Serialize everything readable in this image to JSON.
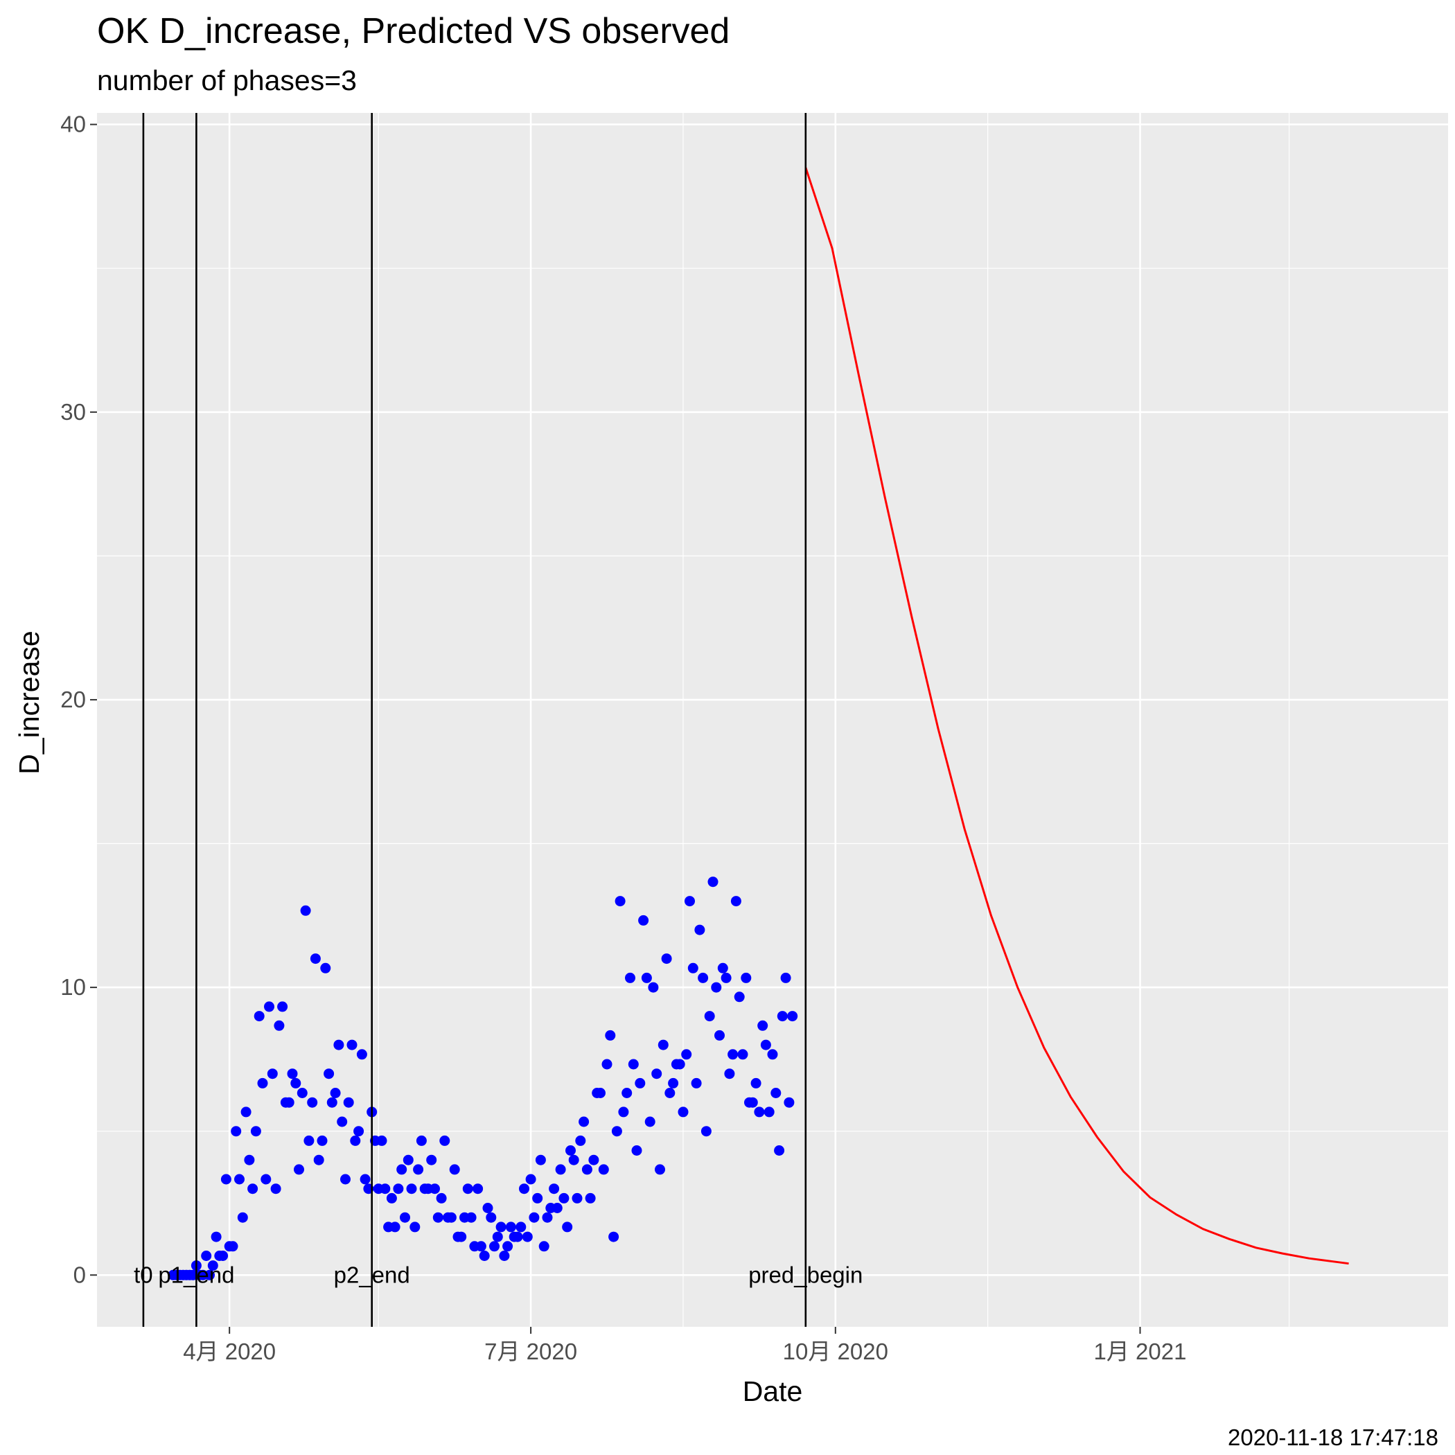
{
  "chart_data": {
    "type": "scatter",
    "title": "OK D_increase, Predicted VS observed",
    "subtitle": "number of phases=3",
    "xlabel": "Date",
    "ylabel": "D_increase",
    "caption": "2020-11-18 17:47:18",
    "x_range": [
      "2020-02-21",
      "2021-04-04"
    ],
    "ylim": [
      -1.8,
      40.4
    ],
    "y_ticks": [
      0,
      10,
      20,
      30,
      40
    ],
    "x_ticks": [
      {
        "date": "2020-04-01",
        "label": "4月 2020"
      },
      {
        "date": "2020-07-01",
        "label": "7月 2020"
      },
      {
        "date": "2020-10-01",
        "label": "10月 2020"
      },
      {
        "date": "2021-01-01",
        "label": "1月 2021"
      }
    ],
    "x_minor_ticks": [
      "2020-02-15",
      "2020-05-16",
      "2020-08-16",
      "2020-11-16",
      "2021-02-15"
    ],
    "grid": true,
    "background": "#EBEBEB",
    "vlines": [
      {
        "date": "2020-03-06",
        "label": "t0"
      },
      {
        "date": "2020-03-22",
        "label": "p1_end"
      },
      {
        "date": "2020-05-14",
        "label": "p2_end"
      },
      {
        "date": "2020-09-22",
        "label": "pred_begin"
      }
    ],
    "series": [
      {
        "color": "#0000FF",
        "kind": "points",
        "points": [
          [
            "2020-03-15",
            0
          ],
          [
            "2020-03-16",
            0
          ],
          [
            "2020-03-17",
            0
          ],
          [
            "2020-03-18",
            0
          ],
          [
            "2020-03-19",
            0
          ],
          [
            "2020-03-20",
            0
          ],
          [
            "2020-03-21",
            0
          ],
          [
            "2020-03-22",
            0.33
          ],
          [
            "2020-03-23",
            0
          ],
          [
            "2020-03-24",
            0
          ],
          [
            "2020-03-25",
            0.67
          ],
          [
            "2020-03-26",
            0
          ],
          [
            "2020-03-27",
            0.33
          ],
          [
            "2020-03-28",
            1.33
          ],
          [
            "2020-03-29",
            0.67
          ],
          [
            "2020-03-30",
            0.67
          ],
          [
            "2020-03-31",
            3.33
          ],
          [
            "2020-04-01",
            1.0
          ],
          [
            "2020-04-02",
            1.0
          ],
          [
            "2020-04-03",
            5.0
          ],
          [
            "2020-04-04",
            3.33
          ],
          [
            "2020-04-05",
            2.0
          ],
          [
            "2020-04-06",
            5.67
          ],
          [
            "2020-04-07",
            4.0
          ],
          [
            "2020-04-08",
            3.0
          ],
          [
            "2020-04-09",
            5.0
          ],
          [
            "2020-04-10",
            9.0
          ],
          [
            "2020-04-11",
            6.67
          ],
          [
            "2020-04-12",
            3.33
          ],
          [
            "2020-04-13",
            9.33
          ],
          [
            "2020-04-14",
            7.0
          ],
          [
            "2020-04-15",
            3.0
          ],
          [
            "2020-04-16",
            8.67
          ],
          [
            "2020-04-17",
            9.33
          ],
          [
            "2020-04-18",
            6.0
          ],
          [
            "2020-04-19",
            6.0
          ],
          [
            "2020-04-20",
            7.0
          ],
          [
            "2020-04-21",
            6.67
          ],
          [
            "2020-04-22",
            3.67
          ],
          [
            "2020-04-23",
            6.33
          ],
          [
            "2020-04-24",
            12.67
          ],
          [
            "2020-04-25",
            4.67
          ],
          [
            "2020-04-26",
            6.0
          ],
          [
            "2020-04-27",
            11.0
          ],
          [
            "2020-04-28",
            4.0
          ],
          [
            "2020-04-29",
            4.67
          ],
          [
            "2020-04-30",
            10.67
          ],
          [
            "2020-05-01",
            7.0
          ],
          [
            "2020-05-02",
            6.0
          ],
          [
            "2020-05-03",
            6.33
          ],
          [
            "2020-05-04",
            8.0
          ],
          [
            "2020-05-05",
            5.33
          ],
          [
            "2020-05-06",
            3.33
          ],
          [
            "2020-05-07",
            6.0
          ],
          [
            "2020-05-08",
            8.0
          ],
          [
            "2020-05-09",
            4.67
          ],
          [
            "2020-05-10",
            5.0
          ],
          [
            "2020-05-11",
            7.67
          ],
          [
            "2020-05-12",
            3.33
          ],
          [
            "2020-05-13",
            3.0
          ],
          [
            "2020-05-14",
            5.67
          ],
          [
            "2020-05-15",
            4.67
          ],
          [
            "2020-05-16",
            3.0
          ],
          [
            "2020-05-17",
            4.67
          ],
          [
            "2020-05-18",
            3.0
          ],
          [
            "2020-05-19",
            1.67
          ],
          [
            "2020-05-20",
            2.67
          ],
          [
            "2020-05-21",
            1.67
          ],
          [
            "2020-05-22",
            3.0
          ],
          [
            "2020-05-23",
            3.67
          ],
          [
            "2020-05-24",
            2.0
          ],
          [
            "2020-05-25",
            4.0
          ],
          [
            "2020-05-26",
            3.0
          ],
          [
            "2020-05-27",
            1.67
          ],
          [
            "2020-05-28",
            3.67
          ],
          [
            "2020-05-29",
            4.67
          ],
          [
            "2020-05-30",
            3.0
          ],
          [
            "2020-05-31",
            3.0
          ],
          [
            "2020-06-01",
            4.0
          ],
          [
            "2020-06-02",
            3.0
          ],
          [
            "2020-06-03",
            2.0
          ],
          [
            "2020-06-04",
            2.67
          ],
          [
            "2020-06-05",
            4.67
          ],
          [
            "2020-06-06",
            2.0
          ],
          [
            "2020-06-07",
            2.0
          ],
          [
            "2020-06-08",
            3.67
          ],
          [
            "2020-06-09",
            1.33
          ],
          [
            "2020-06-10",
            1.33
          ],
          [
            "2020-06-11",
            2.0
          ],
          [
            "2020-06-12",
            3.0
          ],
          [
            "2020-06-13",
            2.0
          ],
          [
            "2020-06-14",
            1.0
          ],
          [
            "2020-06-15",
            3.0
          ],
          [
            "2020-06-16",
            1.0
          ],
          [
            "2020-06-17",
            0.67
          ],
          [
            "2020-06-18",
            2.33
          ],
          [
            "2020-06-19",
            2.0
          ],
          [
            "2020-06-20",
            1.0
          ],
          [
            "2020-06-21",
            1.33
          ],
          [
            "2020-06-22",
            1.67
          ],
          [
            "2020-06-23",
            0.67
          ],
          [
            "2020-06-24",
            1.0
          ],
          [
            "2020-06-25",
            1.67
          ],
          [
            "2020-06-26",
            1.33
          ],
          [
            "2020-06-27",
            1.33
          ],
          [
            "2020-06-28",
            1.67
          ],
          [
            "2020-06-29",
            3.0
          ],
          [
            "2020-06-30",
            1.33
          ],
          [
            "2020-07-01",
            3.33
          ],
          [
            "2020-07-02",
            2.0
          ],
          [
            "2020-07-03",
            2.67
          ],
          [
            "2020-07-04",
            4.0
          ],
          [
            "2020-07-05",
            1.0
          ],
          [
            "2020-07-06",
            2.0
          ],
          [
            "2020-07-07",
            2.33
          ],
          [
            "2020-07-08",
            3.0
          ],
          [
            "2020-07-09",
            2.33
          ],
          [
            "2020-07-10",
            3.67
          ],
          [
            "2020-07-11",
            2.67
          ],
          [
            "2020-07-12",
            1.67
          ],
          [
            "2020-07-13",
            4.33
          ],
          [
            "2020-07-14",
            4.0
          ],
          [
            "2020-07-15",
            2.67
          ],
          [
            "2020-07-16",
            4.67
          ],
          [
            "2020-07-17",
            5.33
          ],
          [
            "2020-07-18",
            3.67
          ],
          [
            "2020-07-19",
            2.67
          ],
          [
            "2020-07-20",
            4.0
          ],
          [
            "2020-07-21",
            6.33
          ],
          [
            "2020-07-22",
            6.33
          ],
          [
            "2020-07-23",
            3.67
          ],
          [
            "2020-07-24",
            7.33
          ],
          [
            "2020-07-25",
            8.33
          ],
          [
            "2020-07-26",
            1.33
          ],
          [
            "2020-07-27",
            5.0
          ],
          [
            "2020-07-28",
            13.0
          ],
          [
            "2020-07-29",
            5.67
          ],
          [
            "2020-07-30",
            6.33
          ],
          [
            "2020-07-31",
            10.33
          ],
          [
            "2020-08-01",
            7.33
          ],
          [
            "2020-08-02",
            4.33
          ],
          [
            "2020-08-03",
            6.67
          ],
          [
            "2020-08-04",
            12.33
          ],
          [
            "2020-08-05",
            10.33
          ],
          [
            "2020-08-06",
            5.33
          ],
          [
            "2020-08-07",
            10.0
          ],
          [
            "2020-08-08",
            7.0
          ],
          [
            "2020-08-09",
            3.67
          ],
          [
            "2020-08-10",
            8.0
          ],
          [
            "2020-08-11",
            11.0
          ],
          [
            "2020-08-12",
            6.33
          ],
          [
            "2020-08-13",
            6.67
          ],
          [
            "2020-08-14",
            7.33
          ],
          [
            "2020-08-15",
            7.33
          ],
          [
            "2020-08-16",
            5.67
          ],
          [
            "2020-08-17",
            7.67
          ],
          [
            "2020-08-18",
            13.0
          ],
          [
            "2020-08-19",
            10.67
          ],
          [
            "2020-08-20",
            6.67
          ],
          [
            "2020-08-21",
            12.0
          ],
          [
            "2020-08-22",
            10.33
          ],
          [
            "2020-08-23",
            5.0
          ],
          [
            "2020-08-24",
            9.0
          ],
          [
            "2020-08-25",
            13.67
          ],
          [
            "2020-08-26",
            10.0
          ],
          [
            "2020-08-27",
            8.33
          ],
          [
            "2020-08-28",
            10.67
          ],
          [
            "2020-08-29",
            10.33
          ],
          [
            "2020-08-30",
            7.0
          ],
          [
            "2020-08-31",
            7.67
          ],
          [
            "2020-09-01",
            13.0
          ],
          [
            "2020-09-02",
            9.67
          ],
          [
            "2020-09-03",
            7.67
          ],
          [
            "2020-09-04",
            10.33
          ],
          [
            "2020-09-05",
            6.0
          ],
          [
            "2020-09-06",
            6.0
          ],
          [
            "2020-09-07",
            6.67
          ],
          [
            "2020-09-08",
            5.67
          ],
          [
            "2020-09-09",
            8.67
          ],
          [
            "2020-09-10",
            8.0
          ],
          [
            "2020-09-11",
            5.67
          ],
          [
            "2020-09-12",
            7.67
          ],
          [
            "2020-09-13",
            6.33
          ],
          [
            "2020-09-14",
            4.33
          ],
          [
            "2020-09-15",
            9.0
          ],
          [
            "2020-09-16",
            10.33
          ],
          [
            "2020-09-17",
            6.0
          ],
          [
            "2020-09-18",
            9.0
          ]
        ]
      },
      {
        "color": "#FF0000",
        "kind": "line",
        "points": [
          [
            "2020-09-22",
            38.5
          ],
          [
            "2020-09-30",
            35.7
          ],
          [
            "2020-10-08",
            31.3
          ],
          [
            "2020-10-16",
            27.0
          ],
          [
            "2020-10-24",
            22.9
          ],
          [
            "2020-11-01",
            19.0
          ],
          [
            "2020-11-09",
            15.5
          ],
          [
            "2020-11-17",
            12.5
          ],
          [
            "2020-11-25",
            10.0
          ],
          [
            "2020-12-03",
            7.9
          ],
          [
            "2020-12-11",
            6.2
          ],
          [
            "2020-12-19",
            4.8
          ],
          [
            "2020-12-27",
            3.6
          ],
          [
            "2021-01-04",
            2.7
          ],
          [
            "2021-01-12",
            2.1
          ],
          [
            "2021-01-20",
            1.6
          ],
          [
            "2021-01-28",
            1.25
          ],
          [
            "2021-02-05",
            0.95
          ],
          [
            "2021-02-13",
            0.75
          ],
          [
            "2021-02-21",
            0.58
          ],
          [
            "2021-03-01",
            0.46
          ],
          [
            "2021-03-05",
            0.4
          ]
        ]
      }
    ]
  }
}
